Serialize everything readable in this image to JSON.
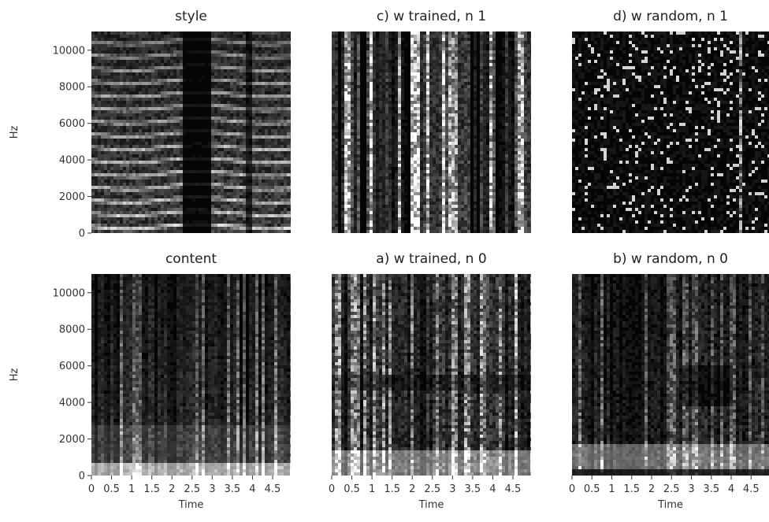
{
  "figure": {
    "colors": {
      "background": "#ffffff",
      "text": "#222222",
      "spectrogram_low": "#000000",
      "spectrogram_high": "#ffffff"
    }
  },
  "chart_data": [
    {
      "type": "heatmap",
      "title": "style",
      "xlabel": "",
      "ylabel": "Hz",
      "xlim": [
        0,
        4.95
      ],
      "ylim": [
        0,
        11025
      ],
      "x_ticks": [],
      "x_tick_labels": [],
      "y_ticks": [
        0,
        2000,
        4000,
        6000,
        8000,
        10000
      ],
      "y_tick_labels": [
        "0",
        "2000",
        "4000",
        "6000",
        "8000",
        "10000"
      ]
    },
    {
      "type": "heatmap",
      "title": "c) w trained, n 1",
      "xlabel": "",
      "ylabel": "",
      "xlim": [
        0,
        4.95
      ],
      "ylim": [
        0,
        11025
      ],
      "x_ticks": [],
      "x_tick_labels": [],
      "y_ticks": [],
      "y_tick_labels": []
    },
    {
      "type": "heatmap",
      "title": "d) w random, n 1",
      "xlabel": "",
      "ylabel": "",
      "xlim": [
        0,
        4.95
      ],
      "ylim": [
        0,
        11025
      ],
      "x_ticks": [],
      "x_tick_labels": [],
      "y_ticks": [],
      "y_tick_labels": []
    },
    {
      "type": "heatmap",
      "title": "content",
      "xlabel": "Time",
      "ylabel": "Hz",
      "xlim": [
        0,
        4.95
      ],
      "ylim": [
        0,
        11025
      ],
      "x_ticks": [
        0,
        0.5,
        1,
        1.5,
        2,
        2.5,
        3,
        3.5,
        4,
        4.5
      ],
      "x_tick_labels": [
        "0",
        "0.5",
        "1",
        "1.5",
        "2",
        "2.5",
        "3",
        "3.5",
        "4",
        "4.5"
      ],
      "y_ticks": [
        0,
        2000,
        4000,
        6000,
        8000,
        10000
      ],
      "y_tick_labels": [
        "0",
        "2000",
        "4000",
        "6000",
        "8000",
        "10000"
      ]
    },
    {
      "type": "heatmap",
      "title": "a) w trained, n 0",
      "xlabel": "Time",
      "ylabel": "",
      "xlim": [
        0,
        4.95
      ],
      "ylim": [
        0,
        11025
      ],
      "x_ticks": [
        0,
        0.5,
        1,
        1.5,
        2,
        2.5,
        3,
        3.5,
        4,
        4.5
      ],
      "x_tick_labels": [
        "0",
        "0.5",
        "1",
        "1.5",
        "2",
        "2.5",
        "3",
        "3.5",
        "4",
        "4.5"
      ],
      "y_ticks": [],
      "y_tick_labels": []
    },
    {
      "type": "heatmap",
      "title": "b) w random, n 0",
      "xlabel": "Time",
      "ylabel": "",
      "xlim": [
        0,
        4.95
      ],
      "ylim": [
        0,
        11025
      ],
      "x_ticks": [
        0,
        0.5,
        1,
        1.5,
        2,
        2.5,
        3,
        3.5,
        4,
        4.5
      ],
      "x_tick_labels": [
        "0",
        "0.5",
        "1",
        "1.5",
        "2",
        "2.5",
        "3",
        "3.5",
        "4",
        "4.5"
      ],
      "y_ticks": [],
      "y_tick_labels": []
    }
  ]
}
